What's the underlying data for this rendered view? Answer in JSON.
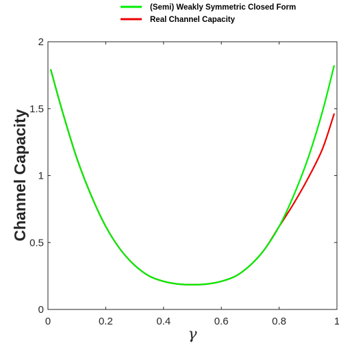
{
  "chart_data": {
    "type": "line",
    "title": "",
    "xlabel": "γ",
    "ylabel": "Channel Capacity",
    "xlim": [
      0,
      1
    ],
    "ylim": [
      0,
      2
    ],
    "xticks": [
      0,
      0.2,
      0.4,
      0.6,
      0.8,
      1
    ],
    "yticks": [
      0,
      0.5,
      1,
      1.5,
      2
    ],
    "xtick_labels": [
      "0",
      "0.2",
      "0.4",
      "0.6",
      "0.8",
      "1"
    ],
    "ytick_labels": [
      "0",
      "0.5",
      "1",
      "1.5",
      "2"
    ],
    "grid": false,
    "legend_position": "top-right (outside plot)",
    "series": [
      {
        "name": "(Semi) Weakly Symmetric Closed Form",
        "color": "#00ee00",
        "x": [
          0.01,
          0.05,
          0.1,
          0.15,
          0.2,
          0.25,
          0.3,
          0.35,
          0.4,
          0.45,
          0.5,
          0.55,
          0.6,
          0.65,
          0.7,
          0.75,
          0.8,
          0.85,
          0.9,
          0.95,
          0.99
        ],
        "y": [
          1.79,
          1.48,
          1.13,
          0.85,
          0.62,
          0.45,
          0.33,
          0.25,
          0.21,
          0.19,
          0.185,
          0.19,
          0.21,
          0.25,
          0.33,
          0.45,
          0.62,
          0.85,
          1.13,
          1.48,
          1.82
        ]
      },
      {
        "name": "Real Channel Capacity",
        "color": "#ee0000",
        "x": [
          0.01,
          0.05,
          0.1,
          0.15,
          0.2,
          0.25,
          0.3,
          0.35,
          0.4,
          0.45,
          0.5,
          0.55,
          0.6,
          0.65,
          0.7,
          0.75,
          0.8,
          0.85,
          0.9,
          0.95,
          0.99
        ],
        "y": [
          1.79,
          1.48,
          1.13,
          0.85,
          0.62,
          0.45,
          0.33,
          0.25,
          0.21,
          0.19,
          0.185,
          0.19,
          0.21,
          0.25,
          0.33,
          0.45,
          0.62,
          0.79,
          0.98,
          1.2,
          1.46
        ]
      }
    ]
  }
}
